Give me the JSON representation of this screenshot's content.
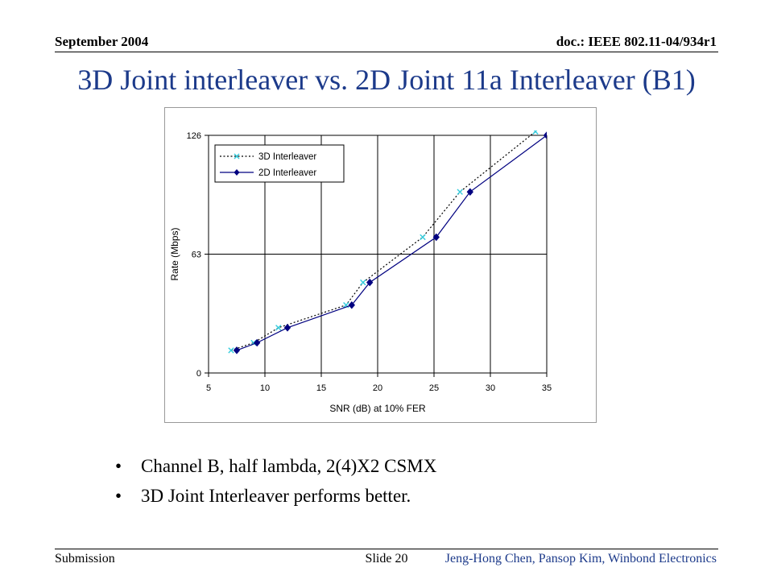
{
  "header": {
    "date": "September 2004",
    "doc_id": "doc.: IEEE 802.11-04/934r1"
  },
  "title": "3D Joint interleaver vs. 2D Joint 11a Interleaver (B1)",
  "bullets": [
    "Channel B, half lambda, 2(4)X2 CSMX",
    "3D Joint Interleaver performs better."
  ],
  "footer": {
    "left": "Submission",
    "center": "Slide 20",
    "right": "Jeng-Hong Chen, Pansop Kim, Winbond Electronics"
  },
  "chart_data": {
    "type": "line",
    "xlabel": "SNR (dB) at 10% FER",
    "ylabel": "Rate (Mbps)",
    "xlim": [
      5,
      35
    ],
    "ylim": [
      0,
      126
    ],
    "xticks": [
      5,
      10,
      15,
      20,
      25,
      30,
      35
    ],
    "yticks": [
      0,
      63,
      126
    ],
    "grid": "vertical-and-horizontal major",
    "legend_position": "top-left",
    "series": [
      {
        "name": "3D Interleaver",
        "style": "dotted",
        "marker": "x",
        "color": "#33ccdd",
        "line_color": "#000000",
        "x": [
          7.0,
          9.0,
          11.2,
          17.2,
          18.7,
          24.0,
          27.3,
          34.0
        ],
        "y": [
          12,
          16,
          24,
          36,
          48,
          72,
          96,
          128
        ]
      },
      {
        "name": "2D Interleaver",
        "style": "solid",
        "marker": "diamond",
        "color": "#000080",
        "line_color": "#000080",
        "x": [
          7.5,
          9.3,
          12.0,
          17.7,
          19.3,
          25.2,
          28.2,
          35.0
        ],
        "y": [
          12,
          16,
          24,
          36,
          48,
          72,
          96,
          126
        ]
      }
    ]
  }
}
